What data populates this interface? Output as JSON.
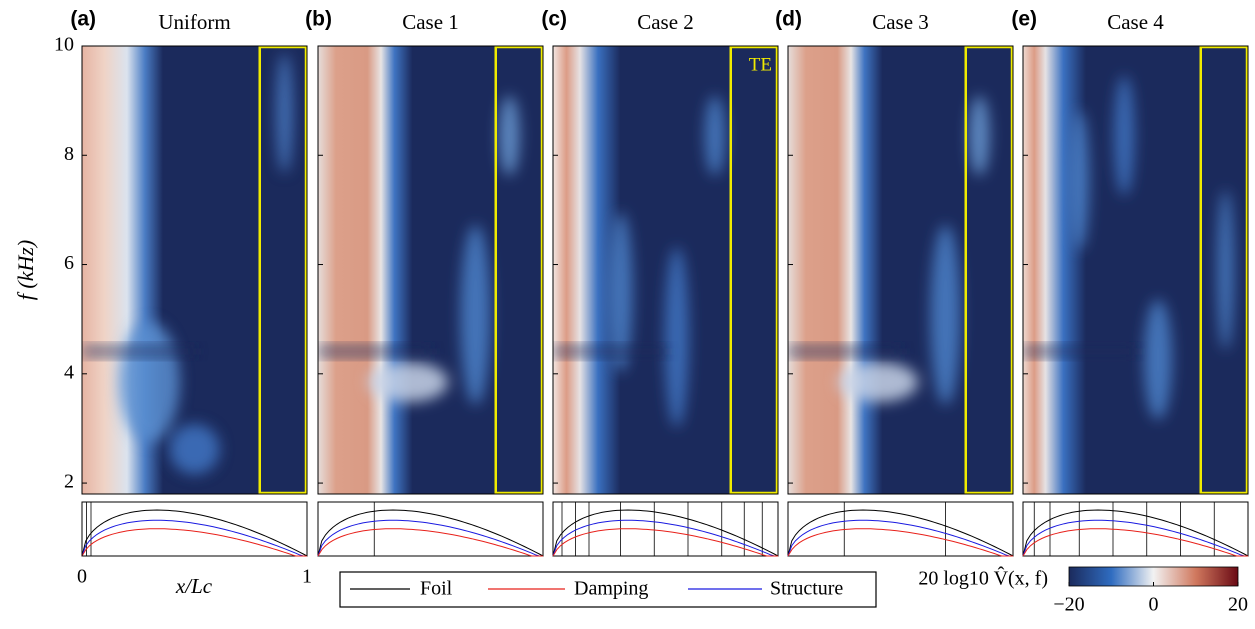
{
  "chart_data": {
    "type": "heatmap",
    "panels": [
      {
        "label": "(a)",
        "title": "Uniform"
      },
      {
        "label": "(b)",
        "title": "Case 1"
      },
      {
        "label": "(c)",
        "title": "Case 2"
      },
      {
        "label": "(d)",
        "title": "Case 3"
      },
      {
        "label": "(e)",
        "title": "Case 4"
      }
    ],
    "ylabel": "f (kHz)",
    "ylim": [
      1.8,
      10
    ],
    "yticks": [
      2,
      4,
      6,
      8,
      10
    ],
    "xlabel": "x/Lc",
    "xlim": [
      0,
      1
    ],
    "xticks": [
      0,
      1
    ],
    "annotation": "TE",
    "legend": [
      {
        "name": "Foil",
        "color": "#000000"
      },
      {
        "name": "Damping",
        "color": "#e8201a"
      },
      {
        "name": "Structure",
        "color": "#1a1ae0"
      }
    ],
    "colorbar": {
      "label": "20 log10 V̂(x, f)",
      "lim": [
        -20,
        20
      ],
      "ticks": [
        {
          "value": -20,
          "label": "−20"
        },
        0,
        20
      ]
    }
  }
}
